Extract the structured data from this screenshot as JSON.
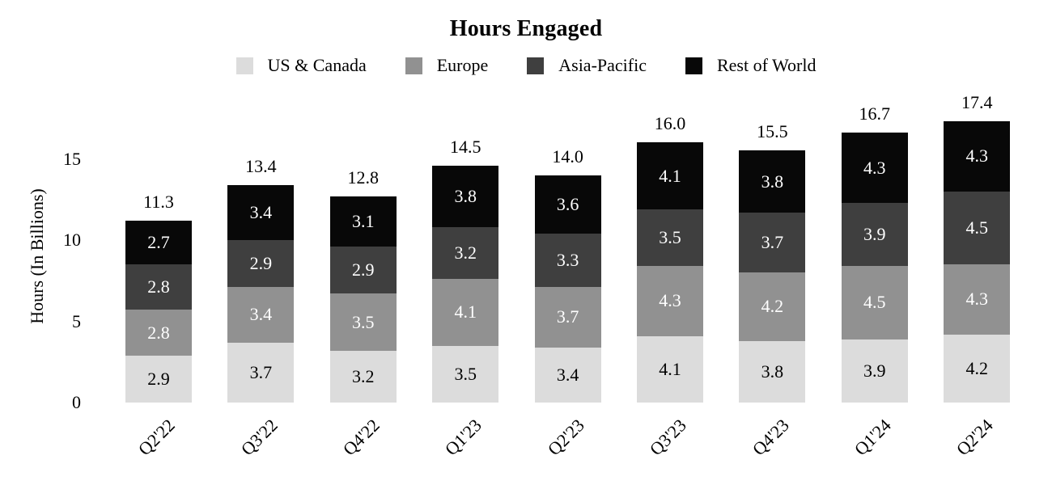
{
  "title": "Hours Engaged",
  "y_axis": {
    "label": "Hours (In Billions)",
    "ticks": [
      "0",
      "5",
      "10",
      "15"
    ],
    "tick_values": [
      0,
      5,
      10,
      15
    ]
  },
  "chart_data": {
    "type": "bar",
    "stacked": true,
    "title": "Hours Engaged",
    "xlabel": "",
    "ylabel": "Hours (In Billions)",
    "ylim": [
      0,
      17.5
    ],
    "grid": false,
    "legend_position": "top",
    "categories": [
      "Q2'22",
      "Q3'22",
      "Q4'22",
      "Q1'23",
      "Q2'23",
      "Q3'23",
      "Q4'23",
      "Q1'24",
      "Q2'24"
    ],
    "series": [
      {
        "name": "US & Canada",
        "color": "#DCDCDC",
        "label_color": "#000000",
        "values": [
          2.9,
          3.7,
          3.2,
          3.5,
          3.4,
          4.1,
          3.8,
          3.9,
          4.2
        ]
      },
      {
        "name": "Europe",
        "color": "#919191",
        "label_color": "#FFFFFF",
        "values": [
          2.8,
          3.4,
          3.5,
          4.1,
          3.7,
          4.3,
          4.2,
          4.5,
          4.3
        ]
      },
      {
        "name": "Asia-Pacific",
        "color": "#3F3F3F",
        "label_color": "#FFFFFF",
        "values": [
          2.8,
          2.9,
          2.9,
          3.2,
          3.3,
          3.5,
          3.7,
          3.9,
          4.5
        ]
      },
      {
        "name": "Rest of World",
        "color": "#080808",
        "label_color": "#FFFFFF",
        "values": [
          2.7,
          3.4,
          3.1,
          3.8,
          3.6,
          4.1,
          3.8,
          4.3,
          4.3
        ]
      }
    ],
    "totals": [
      11.3,
      13.4,
      12.8,
      14.5,
      14.0,
      16.0,
      15.5,
      16.7,
      17.4
    ]
  }
}
